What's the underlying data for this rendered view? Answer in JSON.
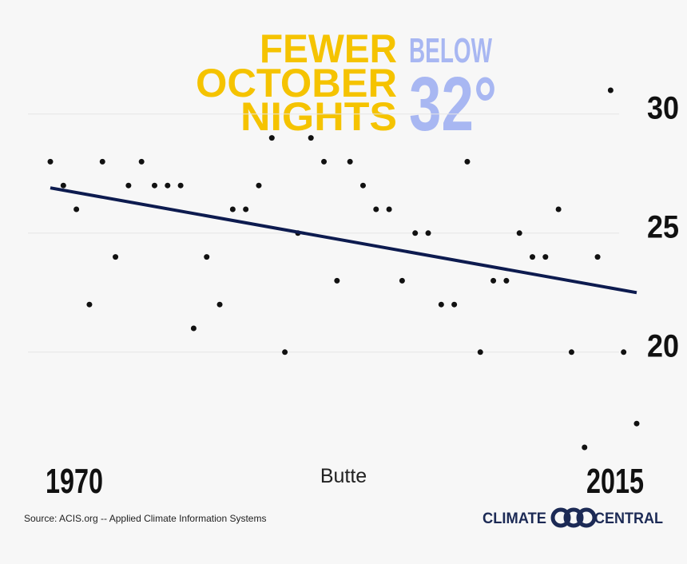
{
  "chart_data": {
    "type": "scatter",
    "title_lines": [
      "FEWER",
      "OCTOBER",
      "NIGHTS"
    ],
    "title_accent": "BELOW",
    "title_big": "32°",
    "label": "Butte",
    "source": "Source: ACIS.org -- Applied Climate Information Systems",
    "brand": [
      "CLIMATE",
      "CENTRAL"
    ],
    "color": "#111111",
    "x": [
      1970,
      1971,
      1972,
      1973,
      1974,
      1975,
      1976,
      1977,
      1978,
      1979,
      1980,
      1981,
      1982,
      1983,
      1984,
      1985,
      1986,
      1987,
      1988,
      1989,
      1990,
      1991,
      1992,
      1993,
      1994,
      1995,
      1996,
      1997,
      1998,
      1999,
      2000,
      2001,
      2002,
      2003,
      2004,
      2005,
      2006,
      2007,
      2008,
      2009,
      2010,
      2011,
      2012,
      2013,
      2014,
      2015
    ],
    "values": [
      28,
      27,
      26,
      22,
      28,
      24,
      27,
      28,
      27,
      27,
      27,
      21,
      24,
      22,
      26,
      26,
      27,
      29,
      20,
      25,
      29,
      28,
      23,
      28,
      27,
      26,
      26,
      23,
      25,
      25,
      22,
      22,
      28,
      20,
      23,
      23,
      25,
      24,
      24,
      26,
      20,
      16,
      24,
      31,
      20,
      17
    ],
    "trend": {
      "color": "#0d1b4f",
      "x": [
        1970,
        2015
      ],
      "values": [
        26.9,
        22.5
      ]
    },
    "xlim": [
      1970,
      2015
    ],
    "xticks": [
      1970,
      2015
    ],
    "ylim": [
      16,
      31
    ],
    "yticks": [
      20,
      25,
      30
    ],
    "grid": true
  }
}
